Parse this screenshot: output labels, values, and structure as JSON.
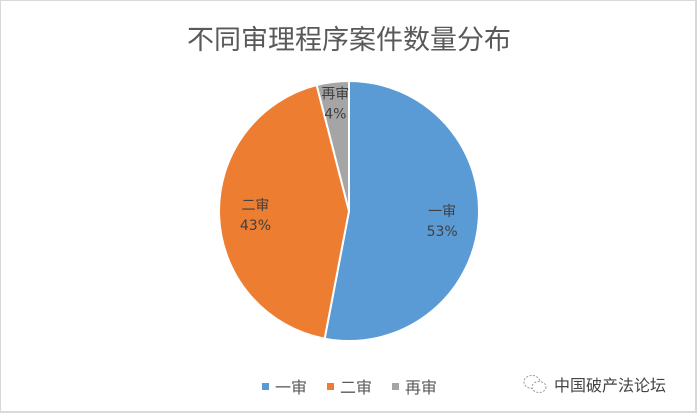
{
  "chart_data": {
    "type": "pie",
    "title": "不同审理程序案件数量分布",
    "categories": [
      "一审",
      "二审",
      "再审"
    ],
    "values": [
      53,
      43,
      4
    ],
    "labels": [
      "53%",
      "43%",
      "4%"
    ],
    "colors": [
      "#5B9BD5",
      "#ED7D31",
      "#A5A5A5"
    ],
    "start": "top, clockwise",
    "legend": "bottom"
  },
  "watermark": "中国破产法论坛"
}
